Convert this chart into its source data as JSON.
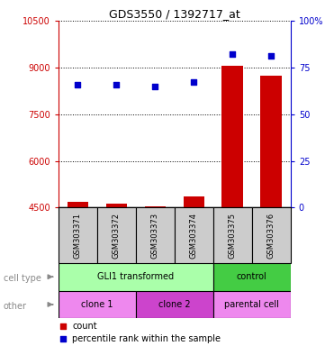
{
  "title": "GDS3550 / 1392717_at",
  "samples": [
    "GSM303371",
    "GSM303372",
    "GSM303373",
    "GSM303374",
    "GSM303375",
    "GSM303376"
  ],
  "counts": [
    4680,
    4640,
    4530,
    4860,
    9050,
    8750
  ],
  "percentile_ranks": [
    66,
    66,
    65,
    67,
    82,
    81
  ],
  "ylim_left": [
    4500,
    10500
  ],
  "ylim_right": [
    0,
    100
  ],
  "yticks_left": [
    4500,
    6000,
    7500,
    9000,
    10500
  ],
  "yticks_right": [
    0,
    25,
    50,
    75,
    100
  ],
  "ytick_labels_left": [
    "4500",
    "6000",
    "7500",
    "9000",
    "10500"
  ],
  "ytick_labels_right": [
    "0",
    "25",
    "50",
    "75",
    "100%"
  ],
  "bar_color": "#cc0000",
  "dot_color": "#0000cc",
  "cell_type_groups": [
    {
      "label": "GLI1 transformed",
      "start": 0,
      "end": 4,
      "color": "#aaffaa"
    },
    {
      "label": "control",
      "start": 4,
      "end": 6,
      "color": "#44cc44"
    }
  ],
  "other_groups": [
    {
      "label": "clone 1",
      "start": 0,
      "end": 2,
      "color": "#ee88ee"
    },
    {
      "label": "clone 2",
      "start": 2,
      "end": 4,
      "color": "#cc44cc"
    },
    {
      "label": "parental cell",
      "start": 4,
      "end": 6,
      "color": "#ee88ee"
    }
  ],
  "cell_type_label": "cell type",
  "other_label": "other",
  "legend_count_label": "count",
  "legend_pct_label": "percentile rank within the sample",
  "left_axis_color": "#cc0000",
  "right_axis_color": "#0000cc",
  "sample_box_color": "#cccccc",
  "label_color": "#888888"
}
